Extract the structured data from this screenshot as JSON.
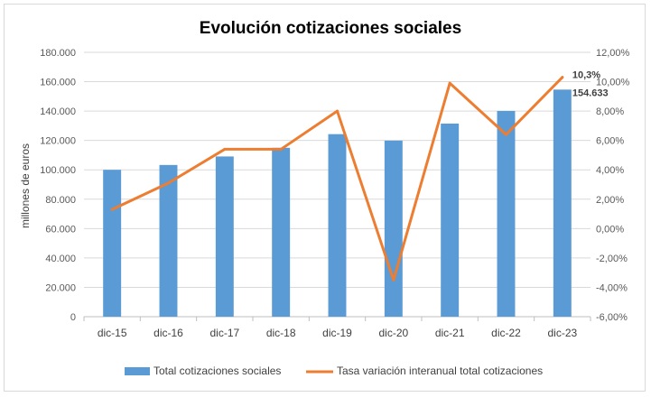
{
  "chart_data": {
    "type": "bar+line",
    "title": "Evolución cotizaciones sociales",
    "ylabel_left": "millones de euros",
    "categories": [
      "dic-15",
      "dic-16",
      "dic-17",
      "dic-18",
      "dic-19",
      "dic-20",
      "dic-21",
      "dic-22",
      "dic-23"
    ],
    "series": [
      {
        "name": "Total cotizaciones sociales",
        "type": "bar",
        "axis": "left",
        "color": "#5b9bd5",
        "values": [
          100000,
          103300,
          109100,
          115000,
          124300,
          119900,
          131500,
          140100,
          154633
        ]
      },
      {
        "name": "Tasa variación interanual total cotizaciones",
        "type": "line",
        "axis": "right",
        "color": "#ed7d31",
        "values": [
          1.3,
          3.1,
          5.4,
          5.4,
          8.0,
          -3.5,
          9.9,
          6.4,
          10.3
        ]
      }
    ],
    "left_axis": {
      "min": 0,
      "max": 180000,
      "step": 20000,
      "tick_labels": [
        "0",
        "20.000",
        "40.000",
        "60.000",
        "80.000",
        "100.000",
        "120.000",
        "140.000",
        "160.000",
        "180.000"
      ]
    },
    "right_axis": {
      "min": -6,
      "max": 12,
      "step": 2,
      "tick_labels": [
        "-6,00%",
        "-4,00%",
        "-2,00%",
        "0,00%",
        "2,00%",
        "4,00%",
        "6,00%",
        "8,00%",
        "10,00%",
        "12,00%"
      ]
    },
    "data_labels": {
      "last_line": "10,3%",
      "last_bar": "154.633"
    },
    "grid": true,
    "legend_position": "bottom"
  }
}
